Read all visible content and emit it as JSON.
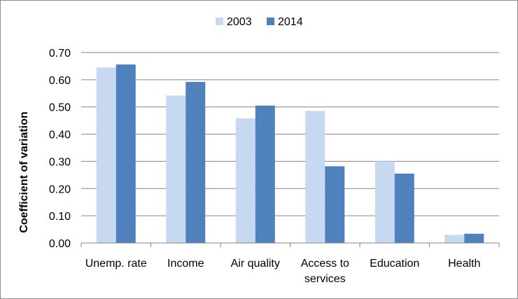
{
  "chart_data": {
    "type": "bar",
    "title": "",
    "xlabel": "",
    "ylabel": "Coefficient of variation",
    "categories": [
      [
        "Unemp. rate"
      ],
      [
        "Income"
      ],
      [
        "Air quality"
      ],
      [
        "Access to",
        "services"
      ],
      [
        "Education"
      ],
      [
        "Health"
      ]
    ],
    "series": [
      {
        "name": "2003",
        "color": "#c6d9f1",
        "values": [
          0.645,
          0.542,
          0.458,
          0.485,
          0.3,
          0.03
        ]
      },
      {
        "name": "2014",
        "color": "#4f81bd",
        "values": [
          0.656,
          0.592,
          0.505,
          0.282,
          0.255,
          0.034
        ]
      }
    ],
    "ylim": [
      0,
      0.7
    ],
    "yticks": [
      "0.00",
      "0.10",
      "0.20",
      "0.30",
      "0.40",
      "0.50",
      "0.60",
      "0.70"
    ],
    "grid": true,
    "gridColor": "#868686",
    "legend": "top-center"
  }
}
